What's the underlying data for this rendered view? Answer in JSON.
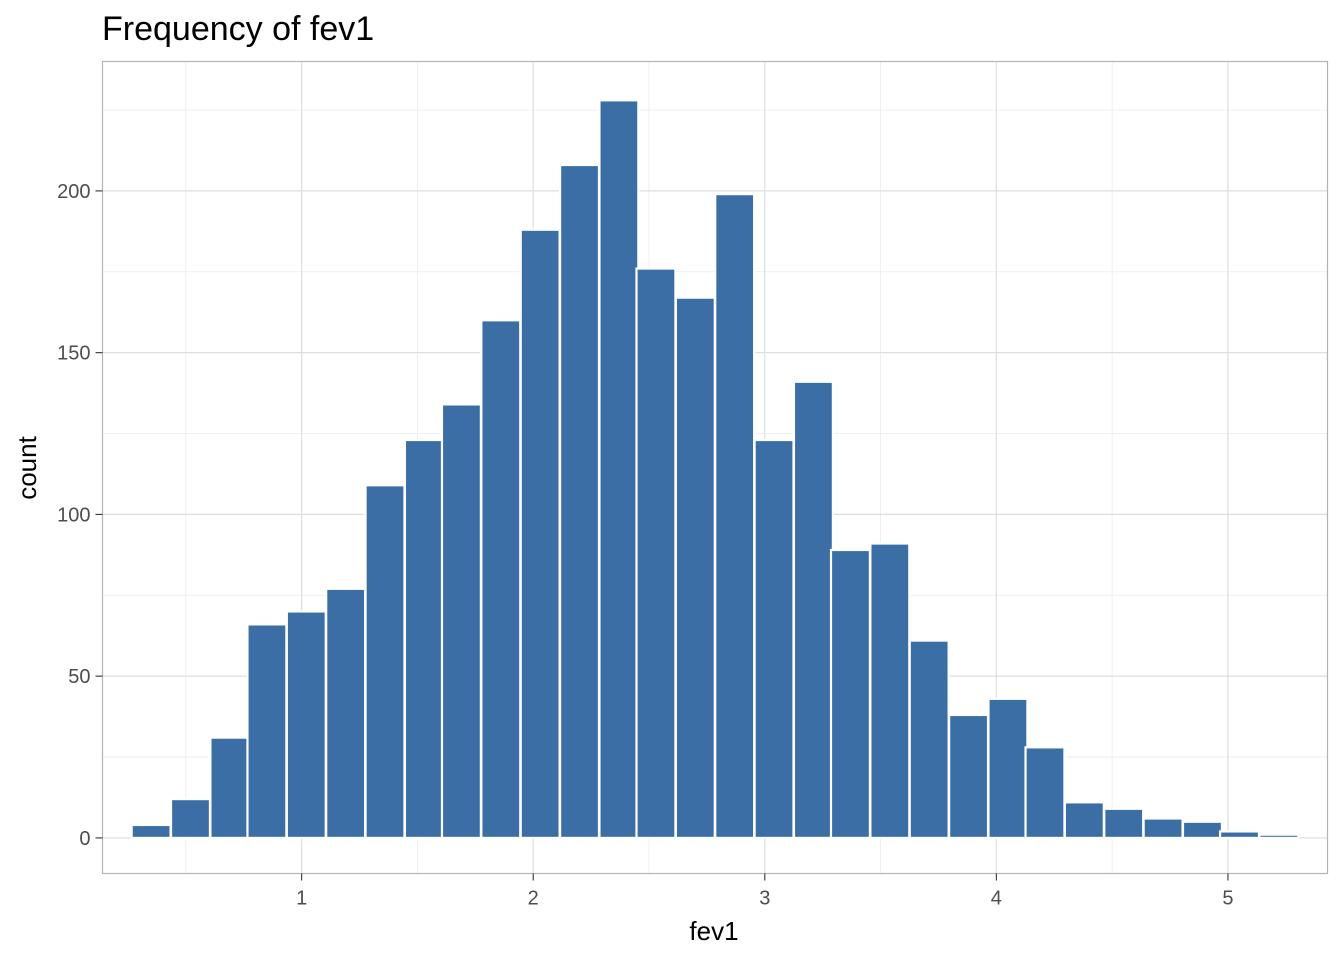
{
  "chart_data": {
    "type": "bar",
    "title": "Frequency of fev1",
    "xlabel": "fev1",
    "ylabel": "count",
    "xlim": [
      0.14,
      5.43
    ],
    "ylim": [
      -11,
      240
    ],
    "x_ticks": [
      1,
      2,
      3,
      4,
      5
    ],
    "y_ticks": [
      0,
      50,
      100,
      150,
      200
    ],
    "grid": true,
    "legend": "none",
    "bar_color": "#3a6ea5",
    "bar_edge_color": "#ffffff",
    "bin_width": 0.168,
    "bin_centers": [
      0.35,
      0.52,
      0.69,
      0.85,
      1.02,
      1.19,
      1.36,
      1.53,
      1.69,
      1.86,
      2.03,
      2.2,
      2.37,
      2.53,
      2.7,
      2.87,
      3.04,
      3.21,
      3.37,
      3.54,
      3.71,
      3.88,
      4.05,
      4.21,
      4.38,
      4.55,
      4.72,
      4.89,
      5.05,
      5.22
    ],
    "values": [
      4,
      12,
      31,
      66,
      70,
      77,
      109,
      123,
      134,
      160,
      188,
      208,
      228,
      176,
      167,
      199,
      123,
      141,
      89,
      91,
      61,
      38,
      43,
      28,
      11,
      9,
      6,
      5,
      2,
      1
    ]
  }
}
